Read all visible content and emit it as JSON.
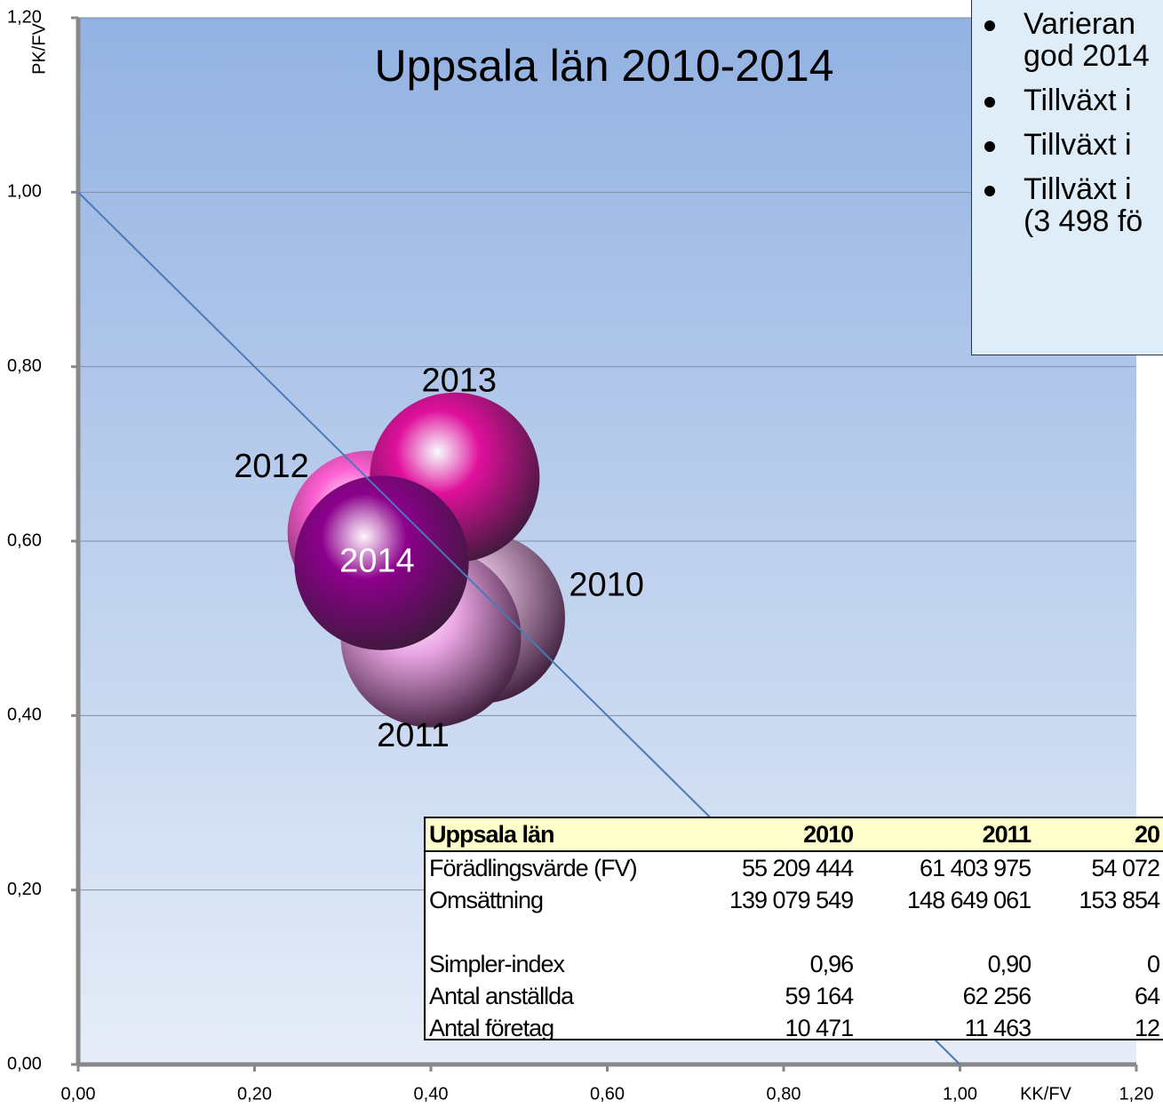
{
  "chart_data": {
    "type": "bubble",
    "title": "Uppsala län 2010-2014",
    "x_label": "KK/FV",
    "y_label": "PK/FV",
    "categories": [
      "2010",
      "2011",
      "2012",
      "2013",
      "2014"
    ],
    "x": [
      0.455,
      0.4,
      0.33,
      0.427,
      0.344
    ],
    "values": [
      0.512,
      0.49,
      0.61,
      0.673,
      0.575
    ],
    "sizes": [
      55,
      61,
      50,
      54,
      57
    ],
    "colors": [
      "#c9a4c3",
      "#eaa6e4",
      "#ff5fd2",
      "#e0109c",
      "#8c008c"
    ],
    "reference_line": {
      "x": [
        0,
        1
      ],
      "y": [
        1,
        0
      ]
    },
    "xlim": [
      0,
      1.2
    ],
    "ylim": [
      0,
      1.2
    ],
    "xticks": [
      {
        "value": 0,
        "label": "0,00"
      },
      {
        "value": 0.2,
        "label": "0,20"
      },
      {
        "value": 0.4,
        "label": "0,40"
      },
      {
        "value": 0.6,
        "label": "0,60"
      },
      {
        "value": 0.8,
        "label": "0,80"
      },
      {
        "value": 1,
        "label": "1,00"
      },
      {
        "value": 1.2,
        "label": "1,20"
      }
    ],
    "yticks": [
      {
        "value": 0,
        "label": "0,00"
      },
      {
        "value": 0.2,
        "label": "0,20"
      },
      {
        "value": 0.4,
        "label": "0,40"
      },
      {
        "value": 0.6,
        "label": "0,60"
      },
      {
        "value": 0.8,
        "label": "0,80"
      },
      {
        "value": 1,
        "label": "1,00"
      },
      {
        "value": 1.2,
        "label": "1,20"
      }
    ],
    "grid": true
  },
  "text_box": {
    "items": [
      [
        "Varieran",
        "god 2014"
      ],
      [
        "Tillväxt i"
      ],
      [
        "Tillväxt i"
      ],
      [
        "Tillväxt i",
        "(3 498 fö"
      ]
    ]
  },
  "table": {
    "header": [
      "Uppsala län",
      "2010",
      "2011",
      "20"
    ],
    "rows": [
      [
        "Förädlingsvärde (FV)",
        "55 209 444",
        "61 403 975",
        "54 072"
      ],
      [
        "Omsättning",
        "139 079 549",
        "148 649 061",
        "153 854"
      ],
      [
        "Simpler-index",
        "0,96",
        "0,90",
        "0"
      ],
      [
        "Antal anställda",
        "59 164",
        "62 256",
        "64"
      ],
      [
        "Antal företag",
        "10 471",
        "11 463",
        "12"
      ]
    ]
  }
}
